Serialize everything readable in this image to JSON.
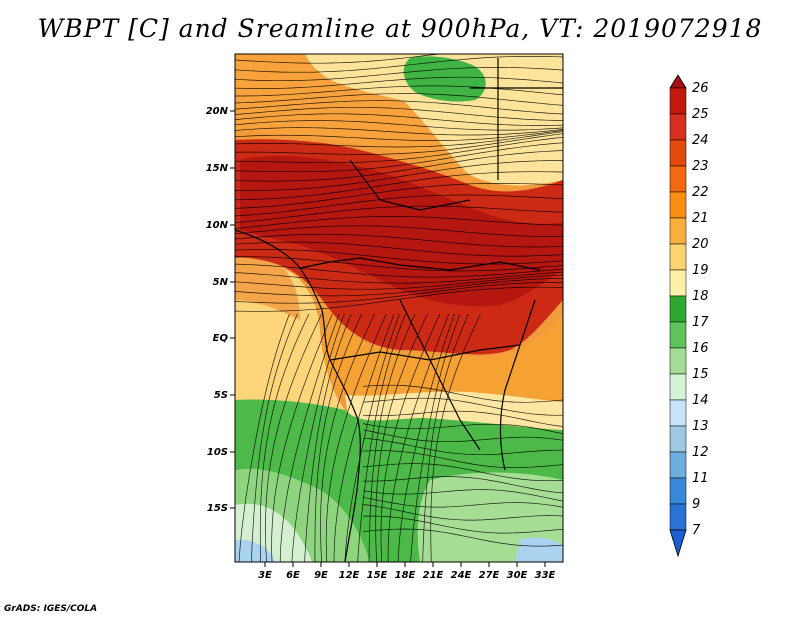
{
  "title": "WBPT [C] and Sreamline at 900hPa, VT: 2019072918",
  "credit": "GrADS: IGES/COLA",
  "map": {
    "lat_labels": [
      "20N",
      "15N",
      "10N",
      "5N",
      "EQ",
      "5S",
      "10S",
      "15S"
    ],
    "lon_labels": [
      "3E",
      "6E",
      "9E",
      "12E",
      "15E",
      "18E",
      "21E",
      "24E",
      "27E",
      "30E",
      "33E"
    ]
  },
  "colorbar": {
    "levels": [
      "26",
      "25",
      "24",
      "23",
      "22",
      "21",
      "20",
      "19",
      "18",
      "17",
      "16",
      "15",
      "14",
      "13",
      "12",
      "11",
      "9",
      "7"
    ],
    "colors": [
      "#a50f15",
      "#c41a0b",
      "#d7301f",
      "#e34a0f",
      "#f16913",
      "#f98e13",
      "#fdae40",
      "#fdd273",
      "#fdf0a8",
      "#2fa82f",
      "#5dc35a",
      "#a3dc94",
      "#d4f2d4",
      "#c8e3f7",
      "#9ecae1",
      "#6aaee0",
      "#3888d8",
      "#1a60d0"
    ]
  }
}
